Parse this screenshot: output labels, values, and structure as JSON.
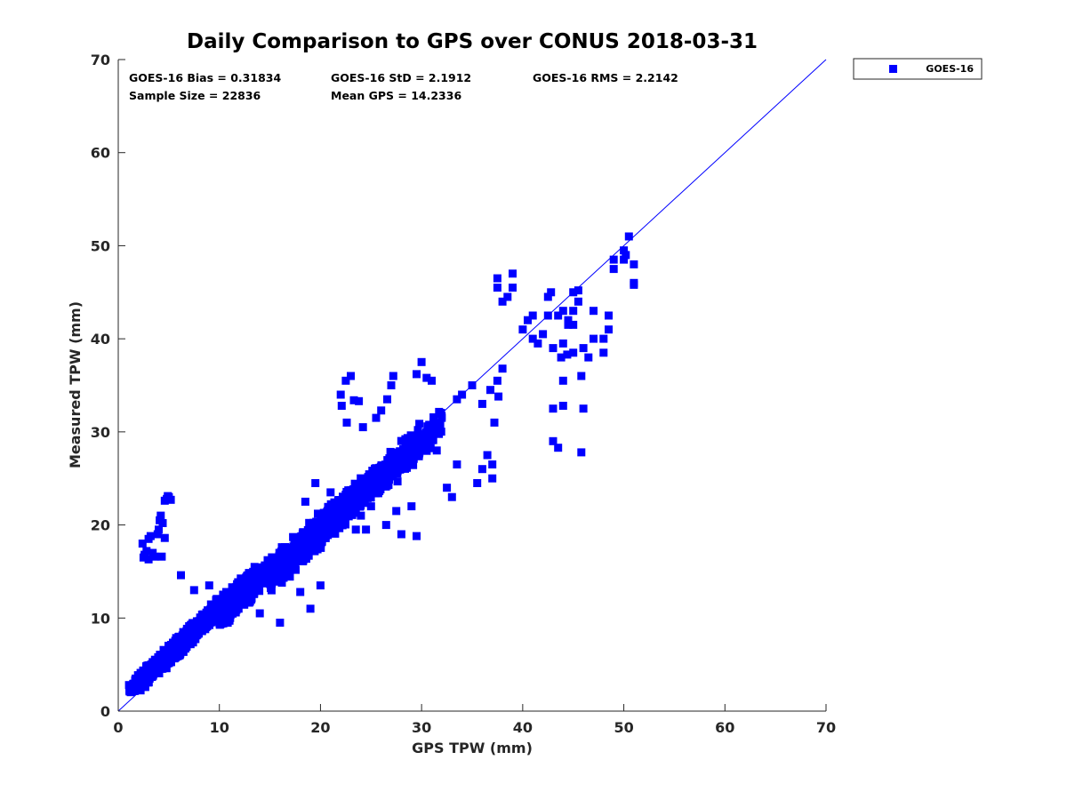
{
  "chart_data": {
    "type": "scatter",
    "title": "Daily Comparison to GPS over CONUS 2018-03-31",
    "xlabel": "GPS TPW (mm)",
    "ylabel": "Measured TPW (mm)",
    "xlim": [
      0,
      70
    ],
    "ylim": [
      0,
      70
    ],
    "xticks": [
      "0",
      "10",
      "20",
      "30",
      "40",
      "50",
      "60",
      "70"
    ],
    "yticks": [
      "0",
      "10",
      "20",
      "30",
      "40",
      "50",
      "60",
      "70"
    ],
    "grid": false,
    "legend_position": "outside top-right",
    "colors": {
      "series": "#0000ff",
      "axis": "#262626"
    },
    "stats": {
      "bias": "GOES-16 Bias = 0.31834",
      "std": "GOES-16 StD = 2.1912",
      "rms": "GOES-16 RMS = 2.2142",
      "sample": "Sample Size = 22836",
      "mean": "Mean GPS = 14.2336"
    },
    "reference_line": {
      "label": "1:1",
      "from": [
        0,
        0
      ],
      "to": [
        70,
        70
      ]
    },
    "series": [
      {
        "name": "GOES-16",
        "marker": "square",
        "clusters": [
          {
            "x": [
              1,
              8
            ],
            "y": [
              2,
              9
            ],
            "n": 500,
            "spread": 0.9
          },
          {
            "x": [
              5,
              14
            ],
            "y": [
              6,
              15
            ],
            "n": 600,
            "spread": 1.0
          },
          {
            "x": [
              10,
              20
            ],
            "y": [
              10,
              20
            ],
            "n": 550,
            "spread": 1.2
          },
          {
            "x": [
              15,
              24
            ],
            "y": [
              14,
              23
            ],
            "n": 400,
            "spread": 1.3
          },
          {
            "x": [
              20,
              30
            ],
            "y": [
              20,
              29
            ],
            "n": 450,
            "spread": 1.3
          },
          {
            "x": [
              24,
              32
            ],
            "y": [
              23,
              31
            ],
            "n": 250,
            "spread": 1.6
          }
        ],
        "points": [
          [
            2.5,
            16.5
          ],
          [
            2.8,
            17.2
          ],
          [
            3.0,
            18.5
          ],
          [
            2.6,
            16.8
          ],
          [
            3.4,
            17.0
          ],
          [
            3.2,
            18.8
          ],
          [
            3.0,
            16.3
          ],
          [
            2.4,
            18.0
          ],
          [
            3.6,
            16.6
          ],
          [
            4.0,
            19.5
          ],
          [
            4.1,
            20.5
          ],
          [
            4.2,
            21.0
          ],
          [
            4.4,
            20.2
          ],
          [
            3.9,
            19.0
          ],
          [
            4.6,
            18.6
          ],
          [
            4.3,
            16.6
          ],
          [
            4.8,
            22.8
          ],
          [
            5.0,
            23.0
          ],
          [
            4.6,
            22.6
          ],
          [
            5.2,
            22.7
          ],
          [
            4.9,
            23.1
          ],
          [
            6.2,
            14.6
          ],
          [
            7.5,
            13.0
          ],
          [
            9.0,
            13.5
          ],
          [
            14.0,
            10.5
          ],
          [
            16.0,
            9.5
          ],
          [
            18.0,
            12.8
          ],
          [
            19.0,
            11.0
          ],
          [
            20.0,
            13.5
          ],
          [
            18.5,
            22.5
          ],
          [
            19.5,
            24.5
          ],
          [
            21.0,
            23.5
          ],
          [
            22.0,
            34.0
          ],
          [
            22.5,
            35.5
          ],
          [
            23.0,
            36.0
          ],
          [
            23.3,
            33.4
          ],
          [
            22.1,
            32.8
          ],
          [
            22.6,
            31.0
          ],
          [
            23.8,
            33.3
          ],
          [
            24.2,
            30.5
          ],
          [
            23.5,
            19.5
          ],
          [
            24.0,
            21.0
          ],
          [
            24.5,
            19.5
          ],
          [
            25.0,
            22.0
          ],
          [
            25.5,
            31.5
          ],
          [
            26.0,
            32.3
          ],
          [
            26.6,
            33.5
          ],
          [
            27.0,
            35.0
          ],
          [
            27.2,
            36.0
          ],
          [
            26.5,
            20.0
          ],
          [
            27.5,
            21.5
          ],
          [
            28.0,
            19.0
          ],
          [
            29.0,
            22.0
          ],
          [
            29.5,
            18.8
          ],
          [
            29.5,
            36.2
          ],
          [
            30.0,
            37.5
          ],
          [
            30.5,
            35.8
          ],
          [
            31.0,
            35.5
          ],
          [
            31.5,
            28.0
          ],
          [
            32.5,
            24.0
          ],
          [
            33.0,
            23.0
          ],
          [
            33.5,
            26.5
          ],
          [
            33.5,
            33.5
          ],
          [
            34.0,
            34.0
          ],
          [
            35.0,
            35.0
          ],
          [
            35.5,
            24.5
          ],
          [
            36.0,
            26.0
          ],
          [
            36.5,
            27.5
          ],
          [
            37.0,
            25.0
          ],
          [
            37.0,
            26.5
          ],
          [
            37.5,
            35.5
          ],
          [
            37.6,
            33.8
          ],
          [
            36.0,
            33.0
          ],
          [
            37.2,
            31.0
          ],
          [
            38.0,
            36.8
          ],
          [
            36.8,
            34.5
          ],
          [
            37.5,
            46.5
          ],
          [
            37.5,
            45.5
          ],
          [
            38.0,
            44.0
          ],
          [
            38.5,
            44.5
          ],
          [
            39.0,
            47.0
          ],
          [
            39.0,
            45.5
          ],
          [
            40.0,
            41.0
          ],
          [
            40.5,
            42.0
          ],
          [
            41.0,
            42.5
          ],
          [
            41.0,
            40.0
          ],
          [
            41.5,
            39.5
          ],
          [
            42.0,
            40.5
          ],
          [
            42.5,
            42.5
          ],
          [
            42.5,
            44.5
          ],
          [
            42.8,
            45.0
          ],
          [
            43.5,
            42.5
          ],
          [
            44.0,
            43.0
          ],
          [
            44.5,
            42.0
          ],
          [
            45.0,
            43.0
          ],
          [
            45.0,
            41.5
          ],
          [
            44.5,
            41.5
          ],
          [
            45.5,
            44.0
          ],
          [
            45.0,
            45.0
          ],
          [
            45.5,
            45.2
          ],
          [
            44.0,
            39.5
          ],
          [
            43.0,
            39.0
          ],
          [
            43.8,
            38.0
          ],
          [
            44.4,
            38.3
          ],
          [
            45.0,
            38.5
          ],
          [
            46.0,
            39.0
          ],
          [
            46.5,
            38.0
          ],
          [
            47.0,
            40.0
          ],
          [
            47.0,
            43.0
          ],
          [
            48.0,
            40.0
          ],
          [
            48.5,
            42.5
          ],
          [
            48.5,
            41.0
          ],
          [
            48.0,
            38.5
          ],
          [
            43.0,
            32.5
          ],
          [
            43.0,
            29.0
          ],
          [
            43.5,
            28.3
          ],
          [
            44.0,
            35.5
          ],
          [
            44.0,
            32.8
          ],
          [
            45.8,
            36.0
          ],
          [
            46.0,
            32.5
          ],
          [
            45.8,
            27.8
          ],
          [
            49.0,
            48.5
          ],
          [
            49.0,
            47.5
          ],
          [
            50.0,
            48.5
          ],
          [
            50.0,
            49.5
          ],
          [
            50.2,
            49.0
          ],
          [
            50.5,
            51.0
          ],
          [
            51.0,
            48.0
          ],
          [
            51.0,
            46.0
          ],
          [
            51.0,
            45.8
          ]
        ]
      }
    ]
  }
}
